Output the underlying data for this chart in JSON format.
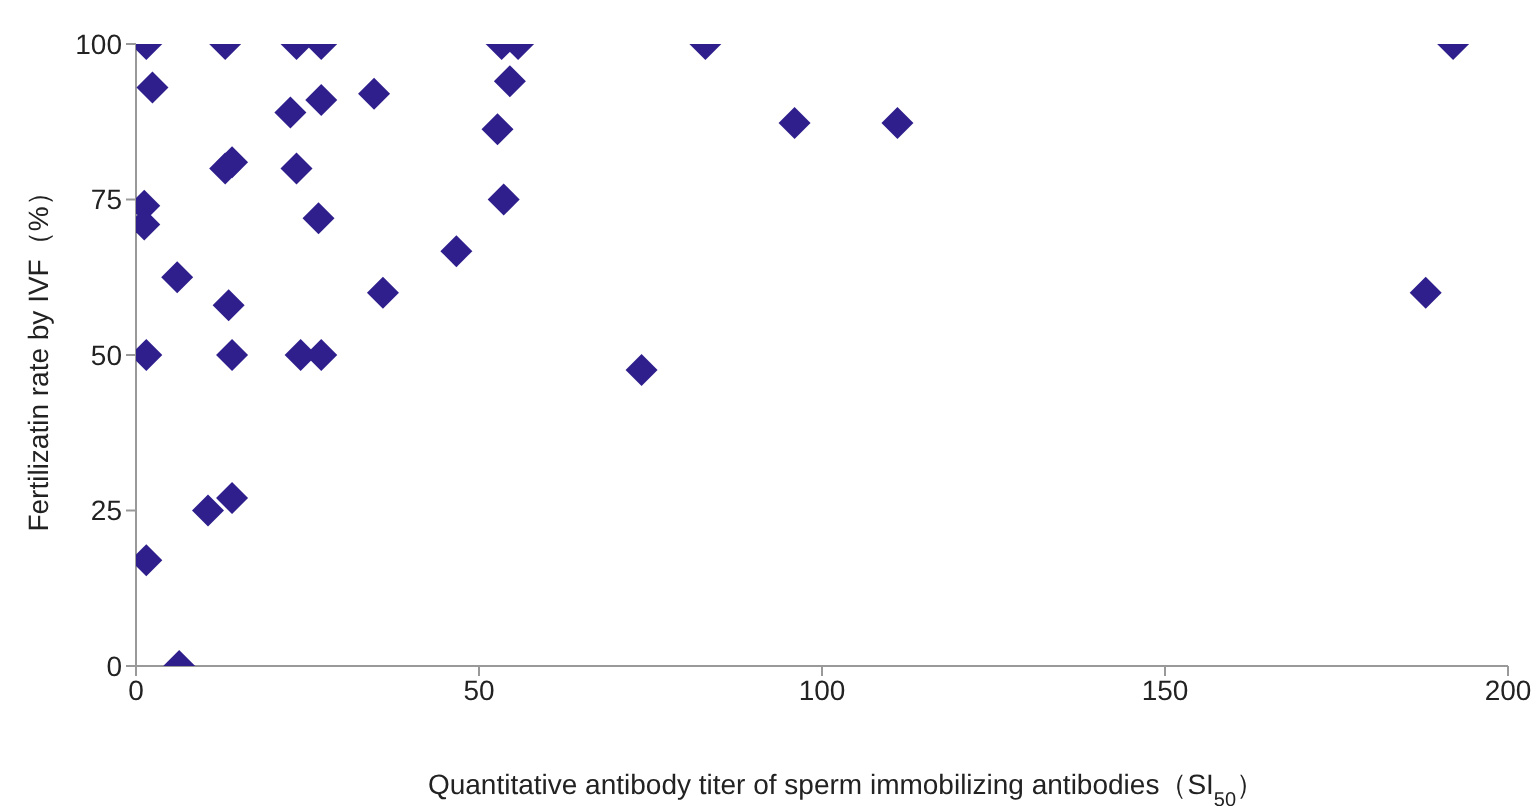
{
  "chart_data": {
    "type": "scatter",
    "xlabel": "Quantitative antibody titer  of sperm immobilizing antibodies（SI$_{50}$）",
    "ylabel": "Fertilizatin rate by IVF（%）",
    "x": [
      1.5,
      2.4,
      1.2,
      1.2,
      1.5,
      1.5,
      6.3,
      6,
      13,
      14,
      13,
      13.5,
      14,
      10.5,
      14,
      23.4,
      27,
      22.5,
      27,
      23.4,
      26.6,
      24,
      27,
      34.7,
      36,
      46.7,
      53.3,
      55.7,
      54.5,
      52.7,
      53.6,
      73.7,
      83,
      96,
      111,
      188,
      192
    ],
    "values": [
      100,
      93,
      74,
      71,
      50,
      17,
      0,
      62.5,
      100,
      81,
      80,
      58,
      50,
      25,
      27,
      100,
      100,
      89,
      91,
      80,
      72,
      50,
      50,
      92,
      60,
      66.7,
      100,
      100,
      94,
      86.3,
      75,
      47.6,
      100,
      87.3,
      87.3,
      60,
      100
    ],
    "color": "#2e1f8c",
    "marker": "diamond",
    "xlim": [
      0,
      200
    ],
    "xticks": [
      0,
      50,
      100,
      150,
      200
    ],
    "ylim": [
      0,
      100
    ],
    "yticks": [
      0,
      25,
      50,
      75,
      100
    ],
    "grid": false,
    "legend": false
  }
}
